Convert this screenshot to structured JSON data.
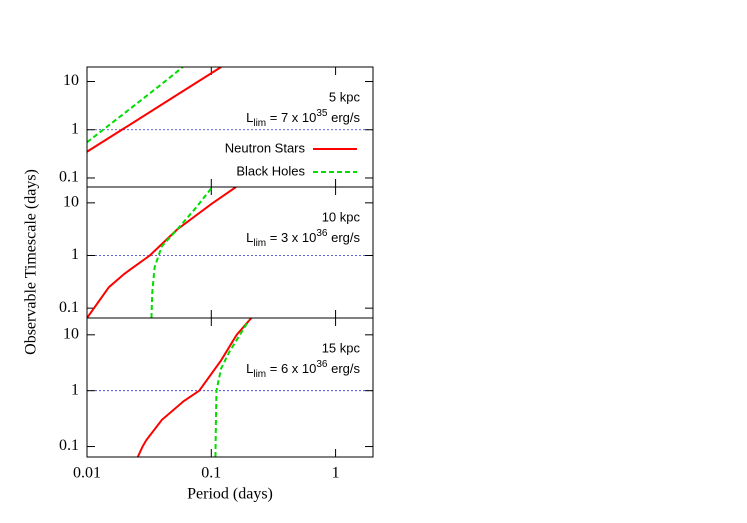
{
  "chart_data": [
    {
      "type": "line",
      "ylabel": "Observable Timescale (days)",
      "log_x": true,
      "log_y": true,
      "xlim": [
        0.01,
        2
      ],
      "ylim": [
        0.065,
        20
      ],
      "xticks": [
        0.01,
        0.1,
        1
      ],
      "yticks": [
        0.1,
        1,
        10
      ],
      "hline": 1,
      "annotation": {
        "title": "5 kpc",
        "main": "L",
        "sub": "lim",
        "text": " = 7 x 10",
        "sup": "35",
        "unit": " erg/s"
      },
      "series": [
        {
          "name": "Neutron Stars",
          "color": "#ff0000",
          "dash": false,
          "x": [
            0.01,
            0.02,
            0.05,
            0.12
          ],
          "values": [
            0.35,
            1.08,
            4.8,
            20
          ]
        },
        {
          "name": "Black Holes",
          "color": "#00dd00",
          "dash": true,
          "x": [
            0.01,
            0.02,
            0.04,
            0.059
          ],
          "values": [
            0.55,
            2.2,
            8.9,
            20
          ]
        }
      ]
    },
    {
      "type": "line",
      "log_x": true,
      "log_y": true,
      "xlim": [
        0.01,
        2
      ],
      "ylim": [
        0.065,
        20
      ],
      "xticks": [
        0.01,
        0.1,
        1
      ],
      "yticks": [
        0.1,
        1,
        10
      ],
      "hline": 1,
      "annotation": {
        "title": "10 kpc",
        "main": "L",
        "sub": "lim",
        "text": " = 3 x 10",
        "sup": "36",
        "unit": " erg/s"
      },
      "series": [
        {
          "color": "#ff0000",
          "dash": false,
          "x": [
            0.01,
            0.015,
            0.02,
            0.032,
            0.053,
            0.1,
            0.158
          ],
          "values": [
            0.065,
            0.25,
            0.45,
            1,
            3.1,
            9.5,
            20
          ]
        },
        {
          "color": "#00dd00",
          "dash": true,
          "x": [
            0.033,
            0.0335,
            0.035,
            0.04,
            0.053,
            0.075,
            0.102
          ],
          "values": [
            0.065,
            0.2,
            0.6,
            1.5,
            3.1,
            8,
            20
          ]
        }
      ]
    },
    {
      "type": "line",
      "xlabel": "Period (days)",
      "log_x": true,
      "log_y": true,
      "xlim": [
        0.01,
        2
      ],
      "ylim": [
        0.065,
        20
      ],
      "xticks": [
        0.01,
        0.1,
        1
      ],
      "yticks": [
        0.1,
        1,
        10
      ],
      "hline": 1,
      "annotation": {
        "title": "15 kpc",
        "main": "L",
        "sub": "lim",
        "text": " = 6 x 10",
        "sup": "36",
        "unit": " erg/s"
      },
      "series": [
        {
          "color": "#ff0000",
          "dash": false,
          "x": [
            0.0256,
            0.028,
            0.03,
            0.04,
            0.06,
            0.08,
            0.12,
            0.16,
            0.21
          ],
          "values": [
            0.065,
            0.1,
            0.13,
            0.3,
            0.65,
            1,
            3.5,
            10,
            20
          ]
        },
        {
          "color": "#00dd00",
          "dash": true,
          "x": [
            0.108,
            0.109,
            0.11,
            0.12,
            0.14,
            0.17,
            0.2
          ],
          "values": [
            0.065,
            0.3,
            1,
            2.5,
            5,
            10,
            18
          ]
        }
      ]
    }
  ]
}
